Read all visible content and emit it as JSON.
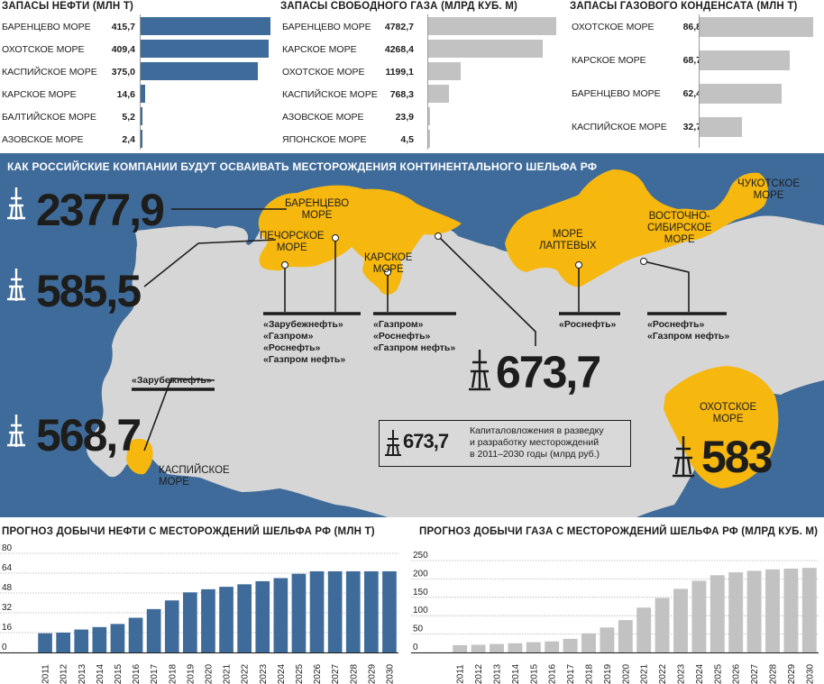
{
  "colors": {
    "oil": "#3f6b9a",
    "gas": "#c2c2c2",
    "shelf": "#f6b70f",
    "land": "#d6d6d6",
    "sea": "#3f6b9a"
  },
  "oil_reserves": {
    "title": "ЗАПАСЫ НЕФТИ (МЛН Т)",
    "rows": [
      {
        "label": "БАРЕНЦЕВО МОРЕ",
        "value": "415,7",
        "v": 415.7
      },
      {
        "label": "ОХОТСКОЕ МОРЕ",
        "value": "409,4",
        "v": 409.4
      },
      {
        "label": "КАСПИЙСКОЕ МОРЕ",
        "value": "375,0",
        "v": 375.0
      },
      {
        "label": "КАРСКОЕ МОРЕ",
        "value": "14,6",
        "v": 14.6
      },
      {
        "label": "БАЛТИЙСКОЕ МОРЕ",
        "value": "5,2",
        "v": 5.2
      },
      {
        "label": "АЗОВСКОЕ МОРЕ",
        "value": "2,4",
        "v": 2.4
      }
    ]
  },
  "gas_reserves": {
    "title": "ЗАПАСЫ СВОБОДНОГО ГАЗА (МЛРД КУБ. М)",
    "rows": [
      {
        "label": "БАРЕНЦЕВО МОРЕ",
        "value": "4782,7",
        "v": 4782.7
      },
      {
        "label": "КАРСКОЕ МОРЕ",
        "value": "4268,4",
        "v": 4268.4
      },
      {
        "label": "ОХОТСКОЕ МОРЕ",
        "value": "1199,1",
        "v": 1199.1
      },
      {
        "label": "КАСПИЙСКОЕ МОРЕ",
        "value": "768,3",
        "v": 768.3
      },
      {
        "label": "АЗОВСКОЕ МОРЕ",
        "value": "23,9",
        "v": 23.9
      },
      {
        "label": "ЯПОНСКОЕ МОРЕ",
        "value": "4,5",
        "v": 4.5
      }
    ]
  },
  "condensate_reserves": {
    "title": "ЗАПАСЫ ГАЗОВОГО КОНДЕНСАТА (МЛН Т)",
    "rows": [
      {
        "label": "ОХОТСКОЕ МОРЕ",
        "value": "86,8",
        "v": 86.8
      },
      {
        "label": "КАРСКОЕ МОРЕ",
        "value": "68,7",
        "v": 68.7
      },
      {
        "label": "БАРЕНЦЕВО МОРЕ",
        "value": "62,4",
        "v": 62.4
      },
      {
        "label": "КАСПИЙСКОЕ МОРЕ",
        "value": "32,7",
        "v": 32.7
      }
    ]
  },
  "map": {
    "title": "КАК РОССИЙСКИЕ КОМПАНИИ БУДУТ ОСВАИВАТЬ МЕСТОРОЖДЕНИЯ КОНТИНЕНТАЛЬНОГО ШЕЛЬФА РФ",
    "investments": {
      "barents": "2377,9",
      "pechora": "585,5",
      "caspian": "568,7",
      "kara": "673,7",
      "okhotsk": "583"
    },
    "seas": {
      "barents": [
        "БАРЕНЦЕВО",
        "МОРЕ"
      ],
      "pechora": [
        "ПЕЧОРСКОЕ",
        "МОРЕ"
      ],
      "kara": [
        "КАРСКОЕ",
        "МОРЕ"
      ],
      "laptev": [
        "МОРЕ",
        "ЛАПТЕВЫХ"
      ],
      "eastsib": [
        "ВОСТОЧНО-",
        "СИБИРСКОЕ",
        "МОРЕ"
      ],
      "chukchi": [
        "ЧУКОТСКОЕ",
        "МОРЕ"
      ],
      "okhotsk": [
        "ОХОТСКОЕ",
        "МОРЕ"
      ],
      "caspian": [
        "КАСПИЙСКОЕ",
        "МОРЕ"
      ]
    },
    "companies": {
      "west": [
        "«Зарубежнефть»",
        "«Газпром»",
        "«Роснефть»",
        "«Газпром нефть»"
      ],
      "kara": [
        "«Газпром»",
        "«Роснефть»",
        "«Газпром нефть»"
      ],
      "laptev": [
        "«Роснефть»"
      ],
      "east": [
        "«Роснефть»",
        "«Газпром нефть»"
      ],
      "caspian": [
        "«Зарубежнефть»"
      ]
    },
    "legend": {
      "value": "673,7",
      "text": [
        "Капиталовложения в разведку",
        "и разработку месторождений",
        "в 2011–2030 годы (млрд руб.)"
      ]
    }
  },
  "chart_data": [
    {
      "type": "bar",
      "title": "ПРОГНОЗ ДОБЫЧИ НЕФТИ С МЕСТОРОЖДЕНИЙ ШЕЛЬФА РФ (МЛН Т)",
      "categories": [
        "2011",
        "2012",
        "2013",
        "2014",
        "2015",
        "2016",
        "2017",
        "2018",
        "2019",
        "2020",
        "2021",
        "2022",
        "2023",
        "2024",
        "2025",
        "2026",
        "2027",
        "2028",
        "2029",
        "2030"
      ],
      "values": [
        15.5,
        16,
        18.5,
        20.5,
        23,
        28,
        35,
        42,
        48.5,
        51,
        53,
        55,
        57.5,
        60,
        63.5,
        65.5,
        65.5,
        65.5,
        65.5,
        65.5
      ],
      "ylim": [
        0,
        80
      ],
      "yticks": [
        "0",
        "16",
        "32",
        "48",
        "64",
        "80"
      ],
      "color": "#3f6b9a"
    },
    {
      "type": "bar",
      "title": "ПРОГНОЗ ДОБЫЧИ ГАЗА С МЕСТОРОЖДЕНИЙ ШЕЛЬФА РФ (МЛРД КУБ. М)",
      "categories": [
        "2011",
        "2012",
        "2013",
        "2014",
        "2015",
        "2016",
        "2017",
        "2018",
        "2019",
        "2020",
        "2021",
        "2022",
        "2023",
        "2024",
        "2025",
        "2026",
        "2027",
        "2028",
        "2029",
        "2030"
      ],
      "values": [
        20,
        21,
        23,
        25,
        28,
        30,
        37,
        52,
        68,
        88,
        122,
        148,
        173,
        195,
        210,
        218,
        222,
        226,
        228,
        230
      ],
      "ylim": [
        0,
        250
      ],
      "yticks": [
        "0",
        "50",
        "100",
        "150",
        "200",
        "250"
      ],
      "color": "#c2c2c2"
    }
  ]
}
